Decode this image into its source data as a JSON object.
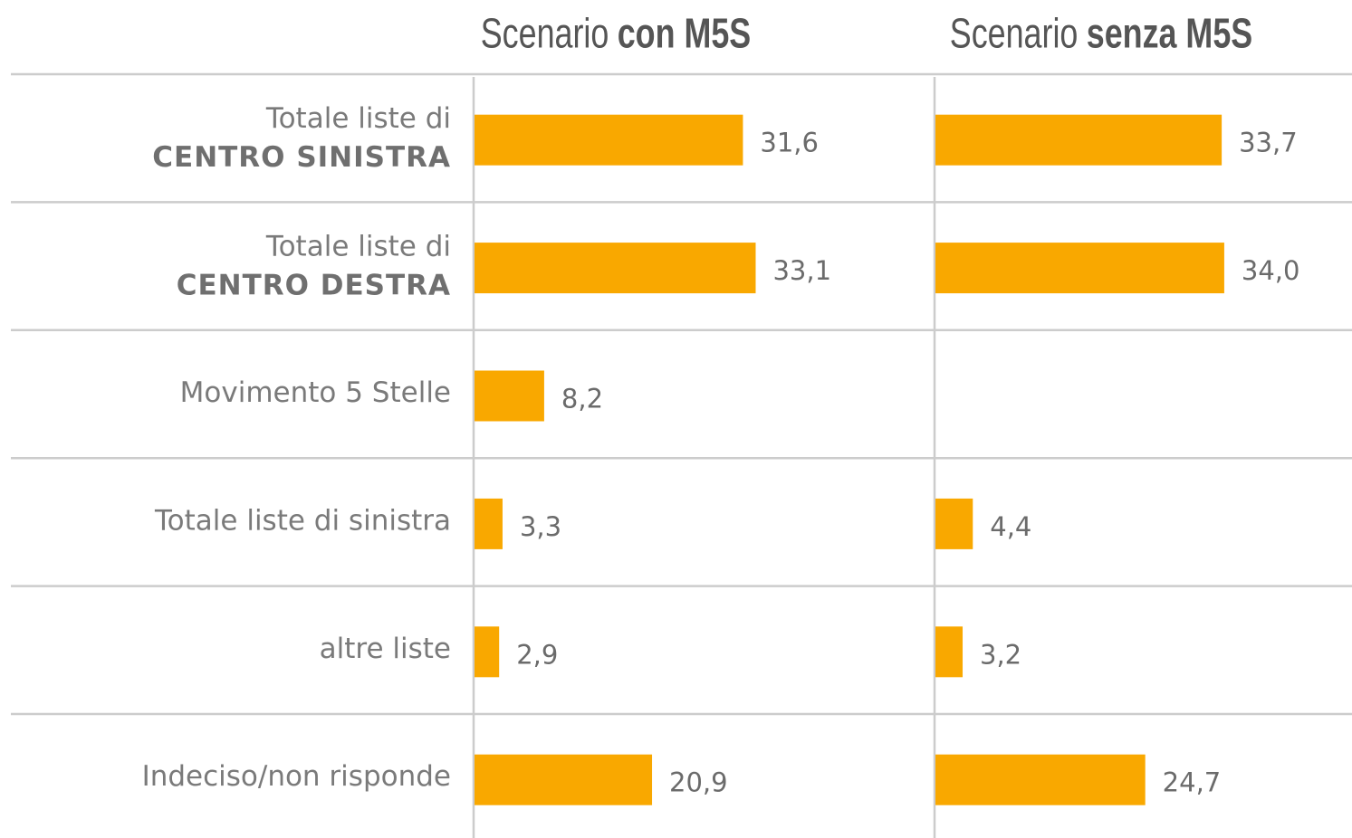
{
  "chart_data": [
    {
      "type": "bar",
      "orientation": "horizontal",
      "title": [
        "Scenario",
        "con M5S"
      ],
      "categories": [
        [
          "Totale liste di",
          "CENTRO SINISTRA"
        ],
        [
          "Totale liste di",
          "CENTRO DESTRA"
        ],
        [
          "Movimento 5 Stelle"
        ],
        [
          "Totale liste di sinistra"
        ],
        [
          "altre liste"
        ],
        [
          "Indeciso/non risponde"
        ]
      ],
      "values": [
        31.6,
        33.1,
        8.2,
        3.3,
        2.9,
        20.9
      ],
      "value_labels": [
        "31,6",
        "33,1",
        "8,2",
        "3,3",
        "2,9",
        "20,9"
      ],
      "color": "#f9a800",
      "xlim": [
        0,
        50
      ]
    },
    {
      "type": "bar",
      "orientation": "horizontal",
      "title": [
        "Scenario",
        "senza M5S"
      ],
      "values": [
        33.7,
        34.0,
        null,
        4.4,
        3.2,
        24.7
      ],
      "value_labels": [
        "33,7",
        "34,0",
        null,
        "4,4",
        "3,2",
        "24,7"
      ],
      "color": "#f9a800",
      "xlim": [
        0,
        50
      ]
    }
  ]
}
